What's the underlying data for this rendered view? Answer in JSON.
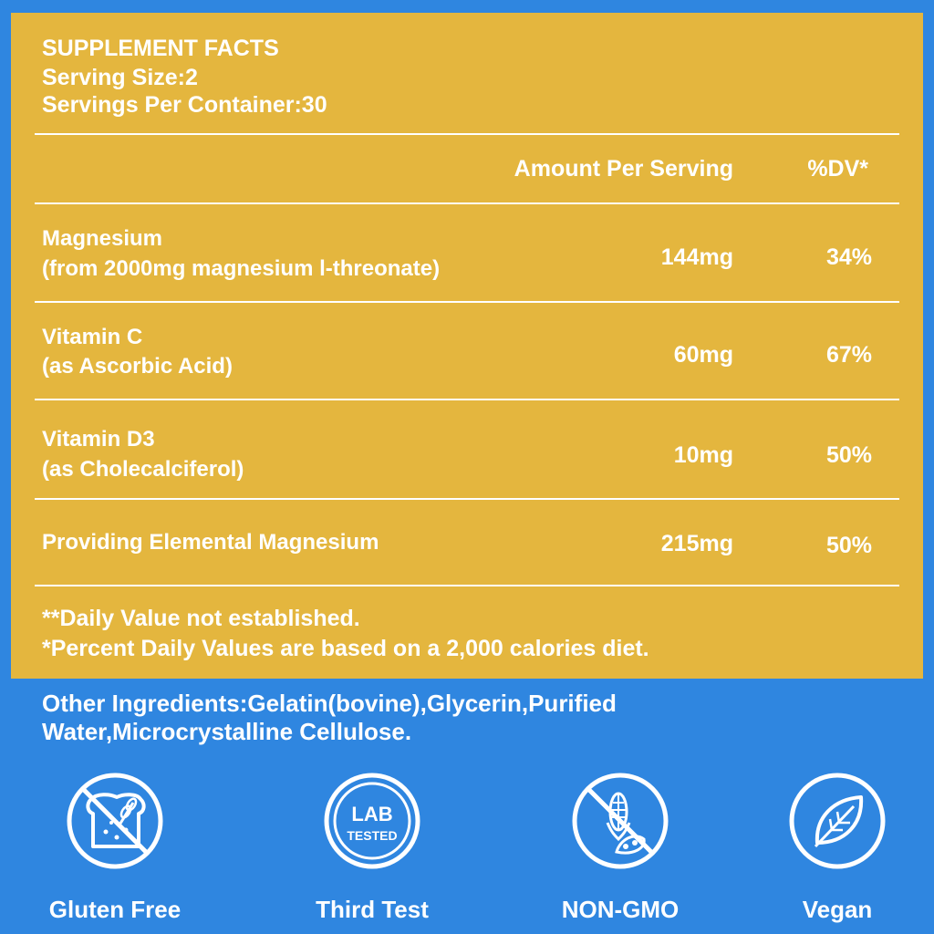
{
  "header": {
    "title": "SUPPLEMENT FACTS",
    "serving_size": "Serving Size:2",
    "servings_per_container": "Servings Per Container:30"
  },
  "table": {
    "col_amount": "Amount Per Serving",
    "col_dv": "%DV*",
    "rows": [
      {
        "name": "Magnesium",
        "sub": "(from 2000mg magnesium l-threonate)",
        "amount": "144mg",
        "dv": "34%"
      },
      {
        "name": "Vitamin C",
        "sub": "(as Ascorbic Acid)",
        "amount": "60mg",
        "dv": "67%"
      },
      {
        "name": "Vitamin D3",
        "sub": "(as Cholecalciferol)",
        "amount": "10mg",
        "dv": "50%"
      },
      {
        "name": "Providing Elemental Magnesium",
        "sub": "",
        "amount": "215mg",
        "dv": "50%"
      }
    ]
  },
  "footnotes": {
    "line1": "**Daily Value not established.",
    "line2": "*Percent Daily Values are based on a 2,000 calories diet."
  },
  "other_ingredients": {
    "line1": "Other Ingredients:Gelatin(bovine),Glycerin,Purified",
    "line2": "Water,Microcrystalline Cellulose."
  },
  "badges": [
    {
      "label": "Gluten Free",
      "icon": "gluten-free-icon"
    },
    {
      "label": "Third Test",
      "icon": "lab-tested-icon",
      "icon_text_1": "LAB",
      "icon_text_2": "TESTED"
    },
    {
      "label": "NON-GMO",
      "icon": "non-gmo-icon"
    },
    {
      "label": "Vegan",
      "icon": "leaf-icon"
    }
  ],
  "colors": {
    "panel": "#e4b63e",
    "background": "#2f86e0",
    "text": "#ffffff"
  }
}
